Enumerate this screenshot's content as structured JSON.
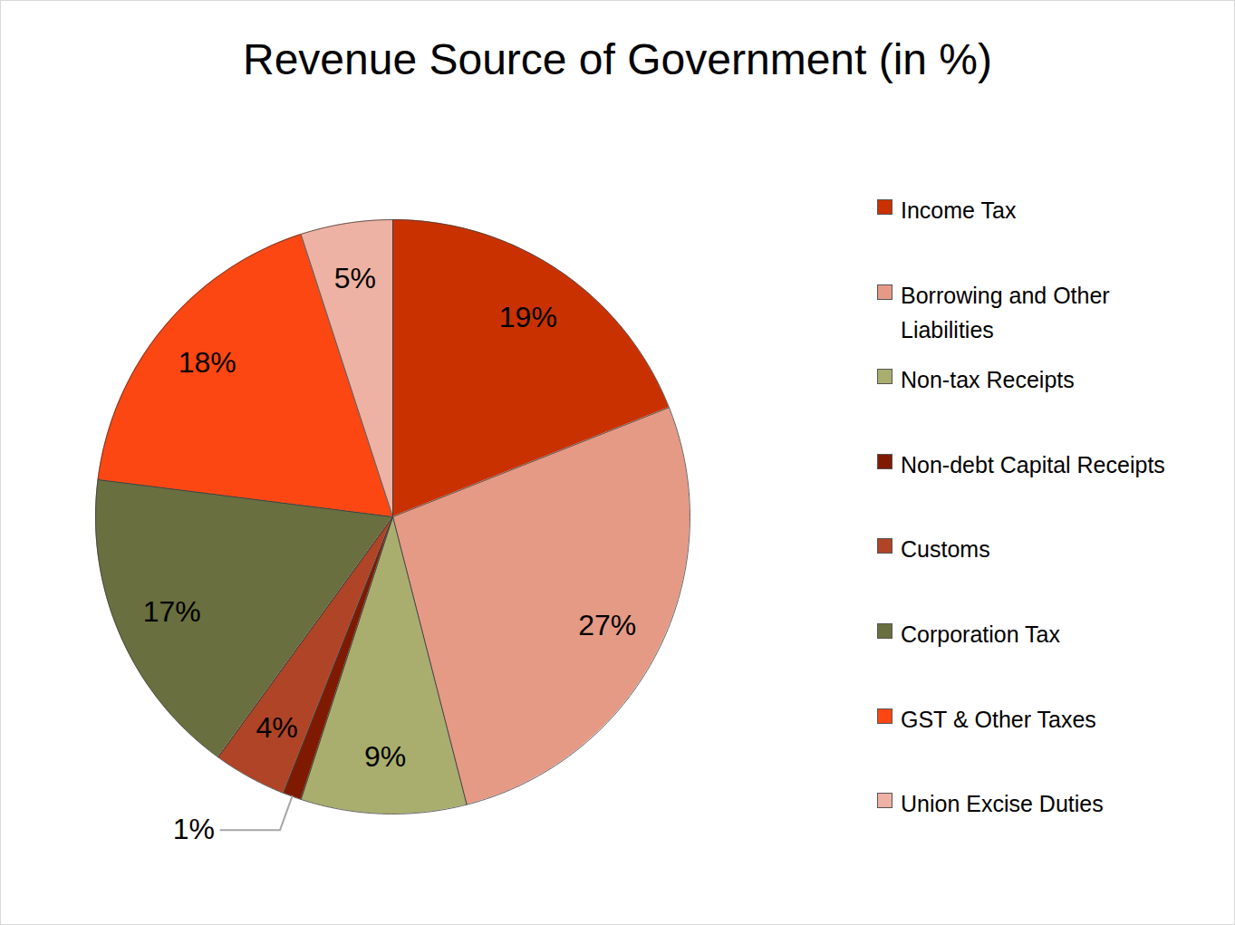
{
  "chart_data": {
    "type": "pie",
    "title": "Revenue Source of Government (in %)",
    "categories": [
      "Income Tax",
      "Borrowing and Other Liabilities",
      "Non-tax Receipts",
      "Non-debt Capital Receipts",
      "Customs",
      "Corporation Tax",
      "GST & Other Taxes",
      "Union Excise Duties"
    ],
    "values": [
      19,
      27,
      9,
      1,
      4,
      17,
      18,
      5
    ],
    "value_labels": [
      "19%",
      "27%",
      "9%",
      "1%",
      "4%",
      "17%",
      "18%",
      "5%"
    ],
    "colors": [
      "#c93200",
      "#e59a85",
      "#a9ae6e",
      "#7f1a00",
      "#b04427",
      "#696f3e",
      "#fc4712",
      "#edb2a3"
    ],
    "data_labels": true,
    "legend": "right"
  }
}
